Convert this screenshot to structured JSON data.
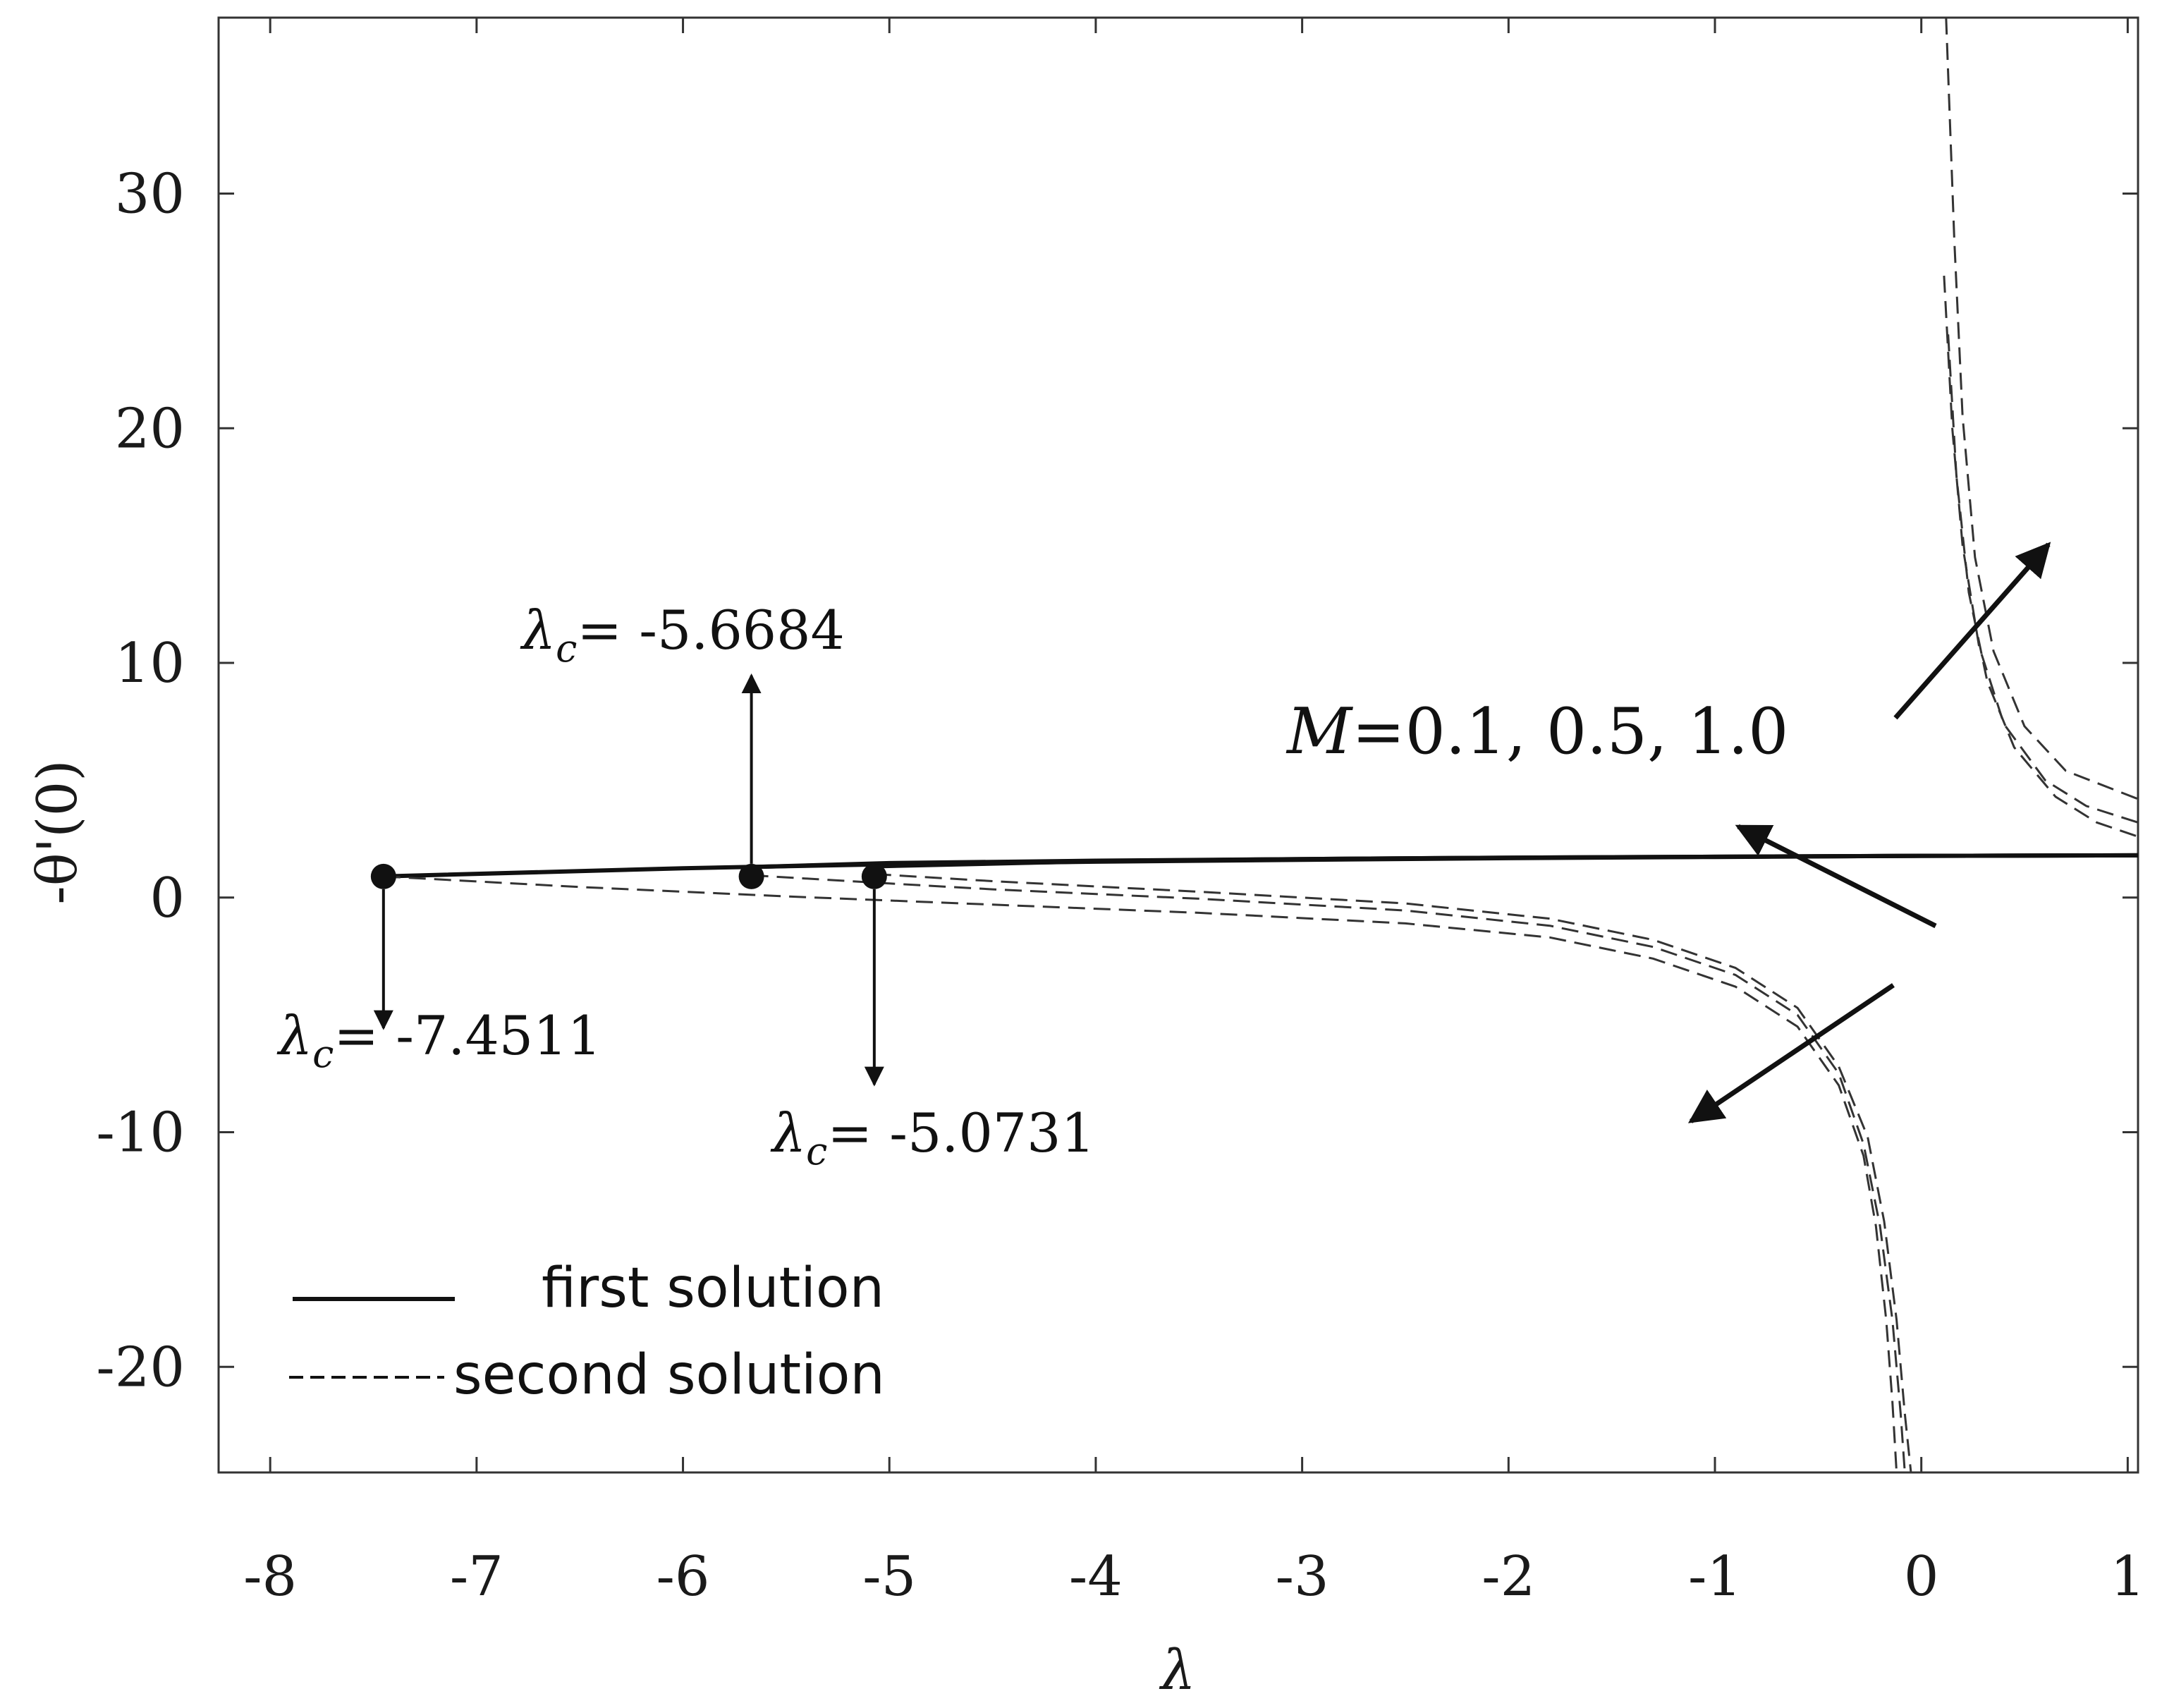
{
  "chart_data": {
    "type": "line",
    "xlabel": "λ",
    "ylabel": "-θ'(0)",
    "xlim": [
      -8.25,
      1.05
    ],
    "ylim": [
      -24.5,
      37.5
    ],
    "xticks": [
      -8,
      -7,
      -6,
      -5,
      -4,
      -3,
      -2,
      -1,
      0,
      1
    ],
    "yticks": [
      -20,
      -10,
      0,
      10,
      20,
      30
    ],
    "grid": false,
    "legend_position": "bottom-left",
    "legend": [
      {
        "label": "first solution",
        "style": "solid"
      },
      {
        "label": "second solution",
        "style": "dashed"
      }
    ],
    "series": [
      {
        "style": "solid",
        "x": [
          -7.4511,
          -6,
          -5,
          -4,
          -3,
          -2,
          -1,
          0,
          1.05
        ],
        "y": [
          0.9,
          1.25,
          1.42,
          1.53,
          1.61,
          1.68,
          1.73,
          1.78,
          1.8
        ]
      },
      {
        "style": "solid",
        "x": [
          -5.6684,
          -5,
          -4,
          -3,
          -2,
          -1,
          0,
          1.05
        ],
        "y": [
          1.3,
          1.47,
          1.57,
          1.64,
          1.7,
          1.74,
          1.78,
          1.8
        ]
      },
      {
        "style": "solid",
        "x": [
          -5.0731,
          -4,
          -3,
          -2,
          -1,
          0,
          1.05
        ],
        "y": [
          1.33,
          1.55,
          1.64,
          1.7,
          1.74,
          1.78,
          1.8
        ]
      },
      {
        "style": "dashed",
        "x": [
          -7.4511,
          -6.5,
          -5.5,
          -4.5,
          -3.5,
          -2.5,
          -1.8,
          -1.3,
          -0.9,
          -0.6,
          -0.4,
          -0.28,
          -0.22,
          -0.17,
          -0.14,
          -0.12
        ],
        "y": [
          0.9,
          0.45,
          0.05,
          -0.3,
          -0.65,
          -1.1,
          -1.7,
          -2.6,
          -3.8,
          -5.5,
          -8,
          -11,
          -14,
          -18,
          -21.5,
          -24.5
        ]
      },
      {
        "style": "dashed",
        "x": [
          -5.6684,
          -5,
          -4.5,
          -3.5,
          -2.5,
          -1.8,
          -1.3,
          -0.9,
          -0.6,
          -0.4,
          -0.28,
          -0.2,
          -0.14,
          -0.1,
          -0.08
        ],
        "y": [
          0.95,
          0.6,
          0.35,
          -0.05,
          -0.55,
          -1.2,
          -2.1,
          -3.3,
          -5,
          -7.5,
          -10.5,
          -14,
          -18,
          -22,
          -24.5
        ]
      },
      {
        "style": "dashed",
        "x": [
          -5.0731,
          -4.5,
          -3.5,
          -2.5,
          -1.8,
          -1.3,
          -0.9,
          -0.6,
          -0.4,
          -0.26,
          -0.18,
          -0.12,
          -0.08,
          -0.05
        ],
        "y": [
          1.0,
          0.7,
          0.25,
          -0.25,
          -0.9,
          -1.8,
          -3.0,
          -4.7,
          -7.2,
          -10.2,
          -13.8,
          -18,
          -22,
          -24.5
        ]
      },
      {
        "style": "dashed",
        "x": [
          0.12,
          0.16,
          0.2,
          0.26,
          0.35,
          0.5,
          0.7,
          1.05
        ],
        "y": [
          37.5,
          28,
          20.5,
          14.5,
          10.5,
          7.3,
          5.4,
          4.2
        ]
      },
      {
        "style": "dashed",
        "x": [
          0.11,
          0.15,
          0.2,
          0.28,
          0.4,
          0.6,
          0.8,
          1.05
        ],
        "y": [
          26.5,
          20,
          15,
          10.7,
          7.4,
          5,
          3.9,
          3.2
        ]
      },
      {
        "style": "dashed",
        "x": [
          0.13,
          0.17,
          0.23,
          0.32,
          0.45,
          0.65,
          0.85,
          1.05
        ],
        "y": [
          24,
          18,
          13,
          9.2,
          6.4,
          4.3,
          3.2,
          2.6
        ]
      }
    ],
    "critical_points": [
      {
        "x": -7.4511,
        "y": 0.9,
        "label_prefix": "λ",
        "label_sub": "c",
        "label_value": "= -7.4511",
        "arrow": "down"
      },
      {
        "x": -5.6684,
        "y": 0.9,
        "label_prefix": "λ",
        "label_sub": "c",
        "label_value": "= -5.6684",
        "arrow": "up"
      },
      {
        "x": -5.0731,
        "y": 0.9,
        "label_prefix": "λ",
        "label_sub": "c",
        "label_value": "= -5.0731",
        "arrow": "down"
      }
    ],
    "annotations": [
      {
        "text_italic": "M",
        "text": "=0.1, 0.5, 1.0"
      }
    ]
  }
}
